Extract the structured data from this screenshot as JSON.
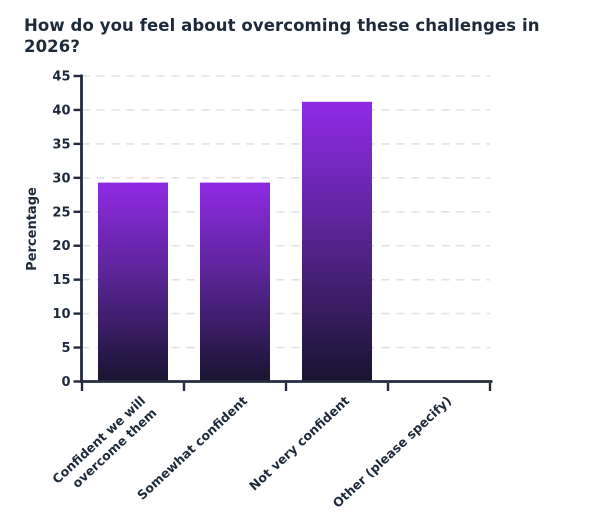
{
  "title": "How do you feel about overcoming these challenges in 2026?",
  "colors": {
    "title_text": "#1d2a3a",
    "axis": "#232b3d",
    "tick_text": "#1d2a3a",
    "grid": "#e2e2e6",
    "background": "#ffffff",
    "bar_gradient_top": "#8f2ae4",
    "bar_gradient_mid": "#5c2598",
    "bar_gradient_bottom": "#191431"
  },
  "chart_data": {
    "type": "bar",
    "title": "How do you feel about overcoming these challenges in 2026?",
    "categories": [
      "Confident we will overcome them",
      "Somewhat confident",
      "Not very confident",
      "Other (please specify)"
    ],
    "category_lines": [
      [
        "Confident we will",
        "overcome them"
      ],
      [
        "Somewhat confident"
      ],
      [
        "Not very confident"
      ],
      [
        "Other (please specify)"
      ]
    ],
    "values": [
      29.3,
      29.3,
      41.2,
      0
    ],
    "xlabel": "",
    "ylabel": "Percentage",
    "ylim": [
      0,
      45
    ],
    "ytick_step": 5,
    "yticks": [
      0,
      5,
      10,
      15,
      20,
      25,
      30,
      35,
      40,
      45
    ],
    "grid": "horizontal-dashed",
    "legend": "none",
    "bar_fill": "vertical gradient, bright violet top to dark navy bottom",
    "x_label_rotation_deg": -43
  }
}
